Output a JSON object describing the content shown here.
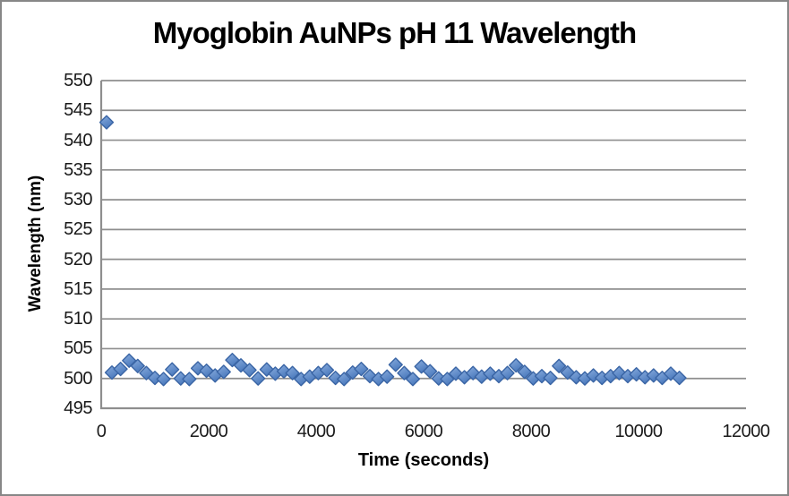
{
  "window": {
    "background_color": "#ffffff",
    "border_color": "#878787"
  },
  "chart": {
    "title": "Myoglobin AuNPs pH 11 Wavelength",
    "x_axis_title": "Time (seconds)",
    "y_axis_title": "Wavelength (nm)"
  },
  "style": {
    "gridline_color": "#8E8E8E",
    "axis_line_color": "#8E8E8E",
    "tick_label_color": "#1a1a1a",
    "marker_fill_light": "#8AADDE",
    "marker_fill_dark": "#4A79BC",
    "marker_border_color": "#3A65A5"
  },
  "chart_data": {
    "type": "scatter",
    "title": "Myoglobin AuNPs pH 11 Wavelength",
    "xlabel": "Time (seconds)",
    "ylabel": "Wavelength (nm)",
    "xlim": [
      0,
      12000
    ],
    "ylim": [
      495,
      550
    ],
    "x_ticks": [
      0,
      2000,
      4000,
      6000,
      8000,
      10000,
      12000
    ],
    "y_ticks": [
      495,
      500,
      505,
      510,
      515,
      520,
      525,
      530,
      535,
      540,
      545,
      550
    ],
    "grid": "horizontal-only",
    "legend": "none",
    "marker": "diamond",
    "marker_color": "#4F81BD",
    "series": [
      {
        "name": "Wavelength (nm)",
        "points": [
          [
            100,
            543.0
          ],
          [
            200,
            501.0
          ],
          [
            360,
            501.6
          ],
          [
            520,
            503.0
          ],
          [
            680,
            502.1
          ],
          [
            840,
            500.9
          ],
          [
            1000,
            500.1
          ],
          [
            1160,
            499.9
          ],
          [
            1320,
            501.5
          ],
          [
            1480,
            500.0
          ],
          [
            1640,
            499.9
          ],
          [
            1800,
            501.7
          ],
          [
            1960,
            501.3
          ],
          [
            2120,
            500.5
          ],
          [
            2280,
            501.1
          ],
          [
            2440,
            503.1
          ],
          [
            2600,
            502.2
          ],
          [
            2760,
            501.4
          ],
          [
            2920,
            500.0
          ],
          [
            3080,
            501.5
          ],
          [
            3240,
            500.8
          ],
          [
            3400,
            501.2
          ],
          [
            3560,
            500.9
          ],
          [
            3720,
            499.9
          ],
          [
            3880,
            500.3
          ],
          [
            4040,
            500.9
          ],
          [
            4200,
            501.4
          ],
          [
            4360,
            500.1
          ],
          [
            4520,
            499.9
          ],
          [
            4680,
            501.0
          ],
          [
            4840,
            501.6
          ],
          [
            5000,
            500.4
          ],
          [
            5160,
            499.9
          ],
          [
            5320,
            500.3
          ],
          [
            5480,
            502.3
          ],
          [
            5640,
            500.9
          ],
          [
            5800,
            499.9
          ],
          [
            5960,
            502.0
          ],
          [
            6120,
            501.2
          ],
          [
            6280,
            500.0
          ],
          [
            6440,
            499.9
          ],
          [
            6600,
            500.8
          ],
          [
            6760,
            500.2
          ],
          [
            6920,
            500.9
          ],
          [
            7080,
            500.3
          ],
          [
            7240,
            500.8
          ],
          [
            7400,
            500.4
          ],
          [
            7560,
            500.9
          ],
          [
            7720,
            502.2
          ],
          [
            7880,
            501.1
          ],
          [
            8040,
            500.0
          ],
          [
            8200,
            500.4
          ],
          [
            8360,
            500.1
          ],
          [
            8520,
            502.1
          ],
          [
            8680,
            501.0
          ],
          [
            8840,
            500.2
          ],
          [
            9000,
            500.0
          ],
          [
            9160,
            500.5
          ],
          [
            9320,
            500.1
          ],
          [
            9480,
            500.4
          ],
          [
            9640,
            500.9
          ],
          [
            9800,
            500.4
          ],
          [
            9960,
            500.7
          ],
          [
            10120,
            500.2
          ],
          [
            10280,
            500.5
          ],
          [
            10440,
            500.1
          ],
          [
            10600,
            500.8
          ],
          [
            10760,
            500.1
          ]
        ]
      }
    ]
  }
}
